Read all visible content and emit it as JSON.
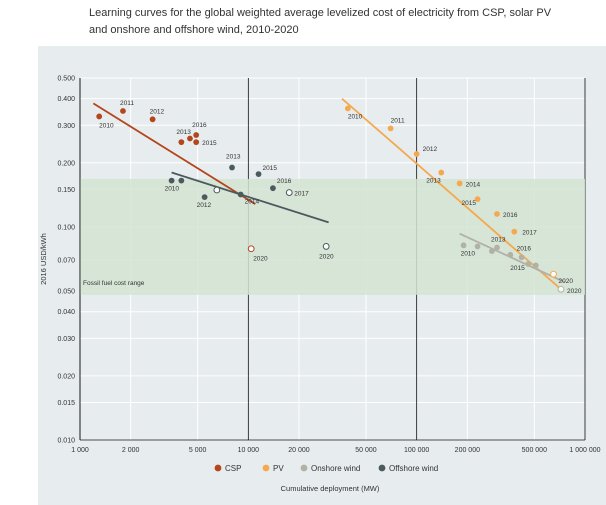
{
  "chart_data": {
    "type": "scatter",
    "title_lines": [
      "Learning curves for the global weighted average levelized cost of electricity from CSP, solar PV",
      "and onshore and offshore wind, 2010-2020"
    ],
    "xlabel": "Cumulative deployment (MW)",
    "ylabel": "2016 USD/kWh",
    "x_scale": "log",
    "y_scale": "log",
    "xlim": [
      1000,
      1000000
    ],
    "ylim": [
      0.01,
      0.5
    ],
    "x_ticks": [
      {
        "v": 1000,
        "label": "1 000"
      },
      {
        "v": 2000,
        "label": "2 000"
      },
      {
        "v": 5000,
        "label": "5 000"
      },
      {
        "v": 10000,
        "label": "10 000"
      },
      {
        "v": 20000,
        "label": "20 000"
      },
      {
        "v": 50000,
        "label": "50 000"
      },
      {
        "v": 100000,
        "label": "100 000"
      },
      {
        "v": 200000,
        "label": "200 000"
      },
      {
        "v": 500000,
        "label": "500 000"
      },
      {
        "v": 1000000,
        "label": "1 000 000"
      }
    ],
    "y_ticks": [
      {
        "v": 0.5,
        "label": "0.500"
      },
      {
        "v": 0.4,
        "label": "0.400"
      },
      {
        "v": 0.3,
        "label": "0.300"
      },
      {
        "v": 0.2,
        "label": "0.200"
      },
      {
        "v": 0.15,
        "label": "0.150"
      },
      {
        "v": 0.1,
        "label": "0.100"
      },
      {
        "v": 0.07,
        "label": "0.070"
      },
      {
        "v": 0.05,
        "label": "0.050"
      },
      {
        "v": 0.04,
        "label": "0.040"
      },
      {
        "v": 0.03,
        "label": "0.030"
      },
      {
        "v": 0.02,
        "label": "0.020"
      },
      {
        "v": 0.015,
        "label": "0.015"
      },
      {
        "v": 0.01,
        "label": "0.010"
      }
    ],
    "fossil_band": {
      "low": 0.048,
      "high": 0.168,
      "label": "Fossil fuel cost range",
      "color": "#d3e4d2"
    },
    "colors": {
      "background": "#e7ecee",
      "grid": "#ffffff"
    },
    "series": [
      {
        "name": "CSP",
        "color": "#b5451b",
        "points": [
          {
            "x": 1300,
            "y": 0.33,
            "label": "2010",
            "filled": true
          },
          {
            "x": 1800,
            "y": 0.35,
            "label": "2011",
            "filled": true
          },
          {
            "x": 2700,
            "y": 0.32,
            "label": "2012",
            "filled": true
          },
          {
            "x": 4000,
            "y": 0.25,
            "label": "2013",
            "filled": true
          },
          {
            "x": 4500,
            "y": 0.26,
            "label": "",
            "filled": true
          },
          {
            "x": 4900,
            "y": 0.27,
            "label": "2016",
            "filled": true
          },
          {
            "x": 4900,
            "y": 0.25,
            "label": "2015",
            "filled": true
          },
          {
            "x": 10400,
            "y": 0.079,
            "label": "2020",
            "filled": false
          }
        ],
        "trend": [
          {
            "x": 1200,
            "y": 0.38
          },
          {
            "x": 11000,
            "y": 0.128
          }
        ]
      },
      {
        "name": "PV",
        "color": "#f5a94f",
        "points": [
          {
            "x": 39000,
            "y": 0.36,
            "label": "2010",
            "filled": true
          },
          {
            "x": 70000,
            "y": 0.29,
            "label": "2011",
            "filled": true
          },
          {
            "x": 100000,
            "y": 0.22,
            "label": "2012",
            "filled": true
          },
          {
            "x": 140000,
            "y": 0.18,
            "label": "2013",
            "filled": true
          },
          {
            "x": 180000,
            "y": 0.16,
            "label": "2014",
            "filled": true
          },
          {
            "x": 230000,
            "y": 0.135,
            "label": "2015",
            "filled": true
          },
          {
            "x": 300000,
            "y": 0.115,
            "label": "2016",
            "filled": true
          },
          {
            "x": 380000,
            "y": 0.095,
            "label": "2017",
            "filled": true
          },
          {
            "x": 650000,
            "y": 0.06,
            "label": "2020",
            "filled": false
          }
        ],
        "trend": [
          {
            "x": 36000,
            "y": 0.4
          },
          {
            "x": 700000,
            "y": 0.052
          }
        ]
      },
      {
        "name": "Onshore wind",
        "color": "#b1b1a8",
        "points": [
          {
            "x": 190000,
            "y": 0.082,
            "label": "2010",
            "filled": true
          },
          {
            "x": 230000,
            "y": 0.081,
            "label": "",
            "filled": true
          },
          {
            "x": 280000,
            "y": 0.077,
            "label": "",
            "filled": true
          },
          {
            "x": 300000,
            "y": 0.08,
            "label": "2013",
            "filled": true
          },
          {
            "x": 360000,
            "y": 0.074,
            "label": "",
            "filled": true
          },
          {
            "x": 420000,
            "y": 0.072,
            "label": "2016",
            "filled": true
          },
          {
            "x": 460000,
            "y": 0.067,
            "label": "2015",
            "filled": true
          },
          {
            "x": 510000,
            "y": 0.066,
            "label": "",
            "filled": true
          },
          {
            "x": 720000,
            "y": 0.051,
            "label": "2020",
            "filled": false
          }
        ],
        "trend": [
          {
            "x": 180000,
            "y": 0.093
          },
          {
            "x": 760000,
            "y": 0.055
          }
        ]
      },
      {
        "name": "Offshore wind",
        "color": "#4b5a5e",
        "points": [
          {
            "x": 3500,
            "y": 0.165,
            "label": "2010",
            "filled": true
          },
          {
            "x": 4000,
            "y": 0.165,
            "label": "",
            "filled": true
          },
          {
            "x": 5500,
            "y": 0.138,
            "label": "2012",
            "filled": true
          },
          {
            "x": 6500,
            "y": 0.149,
            "label": "",
            "filled": false
          },
          {
            "x": 8000,
            "y": 0.19,
            "label": "2013",
            "filled": true
          },
          {
            "x": 9000,
            "y": 0.142,
            "label": "2014",
            "filled": true
          },
          {
            "x": 11500,
            "y": 0.177,
            "label": "2015",
            "filled": true
          },
          {
            "x": 14000,
            "y": 0.152,
            "label": "2016",
            "filled": true
          },
          {
            "x": 17500,
            "y": 0.145,
            "label": "2017",
            "filled": false
          },
          {
            "x": 29000,
            "y": 0.081,
            "label": "2020",
            "filled": false
          }
        ],
        "trend": [
          {
            "x": 3500,
            "y": 0.18
          },
          {
            "x": 30000,
            "y": 0.105
          }
        ]
      }
    ],
    "legend": {
      "position": "bottom",
      "items": [
        "CSP",
        "PV",
        "Onshore wind",
        "Offshore wind"
      ]
    }
  }
}
